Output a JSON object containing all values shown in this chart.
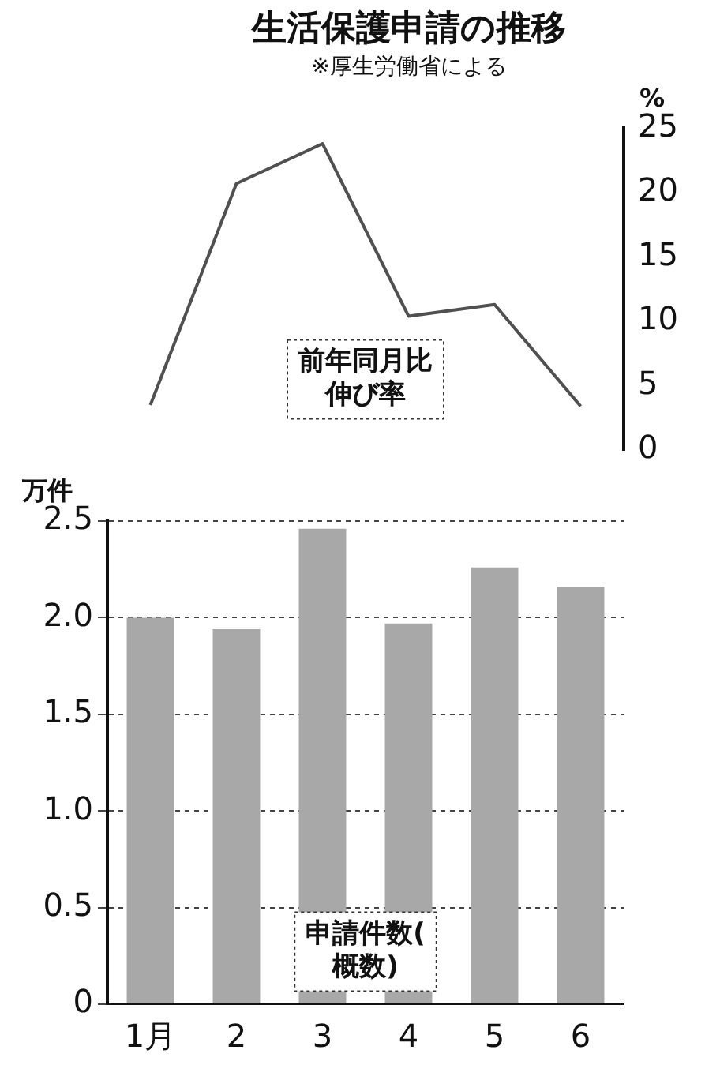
{
  "chart_data": [
    {
      "type": "line",
      "title": "生活保護申請の推移",
      "subtitle": "※厚生労働省による",
      "ylabel": "%",
      "categories": [
        null,
        null,
        null,
        null,
        null,
        null
      ],
      "series": [
        {
          "color": "#505050",
          "values": [
            3.5,
            20.7,
            23.8,
            10.4,
            11.3,
            3.4
          ]
        }
      ],
      "ylim": [
        0,
        25
      ],
      "yticks": [
        0,
        5,
        10,
        15,
        20,
        25
      ],
      "tick_labels": "y",
      "annotations": [
        "前年同月比伸び率"
      ]
    },
    {
      "type": "bar",
      "ylabel": "万件",
      "categories": [
        "1月",
        "2",
        "3",
        "4",
        "5",
        "6"
      ],
      "values": [
        2.0,
        1.94,
        2.46,
        1.97,
        2.26,
        2.16
      ],
      "color": "#a8a8a8",
      "ylim": [
        0,
        2.5
      ],
      "yticks": [
        0,
        0.5,
        {
          "value": 1,
          "label": "1.0"
        },
        1.5,
        {
          "value": 2,
          "label": "2.0"
        },
        2.5
      ],
      "grid": "y",
      "annotations": [
        "申請件数(概数)"
      ]
    }
  ]
}
